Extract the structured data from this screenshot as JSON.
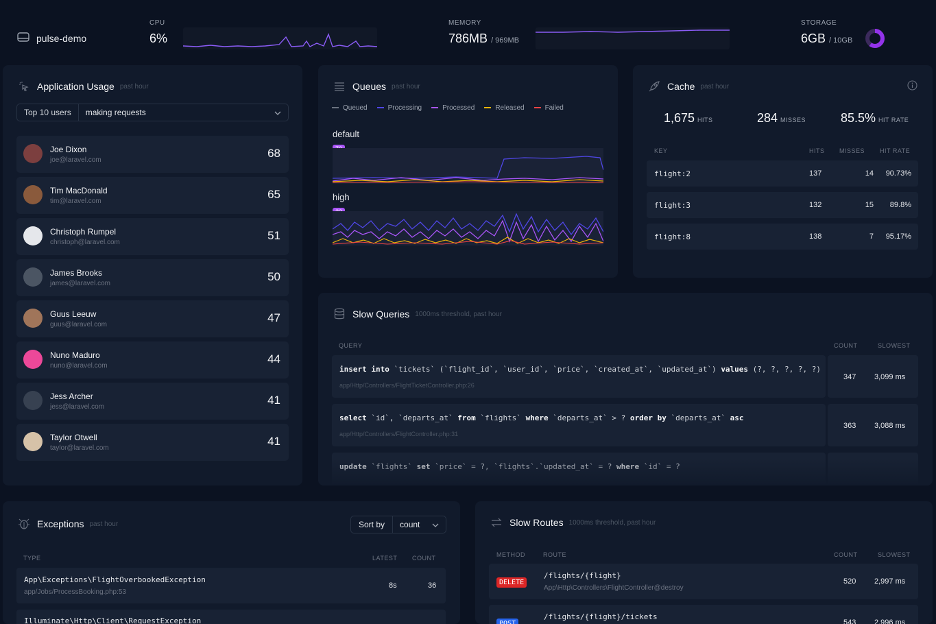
{
  "server": {
    "name": "pulse-demo"
  },
  "cpu": {
    "label": "CPU",
    "value": "6%"
  },
  "memory": {
    "label": "MEMORY",
    "value": "786MB",
    "total": "/ 969MB"
  },
  "storage": {
    "label": "STORAGE",
    "value": "6GB",
    "total": "/ 10GB",
    "used_fraction": 0.6
  },
  "app_usage": {
    "title": "Application Usage",
    "subtitle": "past hour",
    "filter_left": "Top 10 users",
    "filter_right": "making requests",
    "users": [
      {
        "name": "Joe Dixon",
        "email": "joe@laravel.com",
        "count": "68",
        "color": "#7c3f3f"
      },
      {
        "name": "Tim MacDonald",
        "email": "tim@laravel.com",
        "count": "65",
        "color": "#8a5a3c"
      },
      {
        "name": "Christoph Rumpel",
        "email": "christoph@laravel.com",
        "count": "51",
        "color": "#e5e7eb"
      },
      {
        "name": "James Brooks",
        "email": "james@laravel.com",
        "count": "50",
        "color": "#4b5563"
      },
      {
        "name": "Guus Leeuw",
        "email": "guus@laravel.com",
        "count": "47",
        "color": "#a0755a"
      },
      {
        "name": "Nuno Maduro",
        "email": "nuno@laravel.com",
        "count": "44",
        "color": "#ec4899"
      },
      {
        "name": "Jess Archer",
        "email": "jess@laravel.com",
        "count": "41",
        "color": "#374151"
      },
      {
        "name": "Taylor Otwell",
        "email": "taylor@laravel.com",
        "count": "41",
        "color": "#d6c2a8"
      }
    ]
  },
  "queues": {
    "title": "Queues",
    "subtitle": "past hour",
    "legend": [
      {
        "label": "Queued",
        "color": "#6b7280"
      },
      {
        "label": "Processing",
        "color": "#4f46e5"
      },
      {
        "label": "Processed",
        "color": "#a855f7"
      },
      {
        "label": "Released",
        "color": "#eab308"
      },
      {
        "label": "Failed",
        "color": "#ef4444"
      }
    ],
    "default": {
      "label": "default",
      "badge": "70"
    },
    "high": {
      "label": "high",
      "badge": "23"
    }
  },
  "cache": {
    "title": "Cache",
    "subtitle": "past hour",
    "hits": "1,675",
    "hits_label": "HITS",
    "misses": "284",
    "misses_label": "MISSES",
    "rate": "85.5%",
    "rate_label": "HIT RATE",
    "headers": {
      "key": "KEY",
      "hits": "HITS",
      "misses": "MISSES",
      "rate": "HIT RATE"
    },
    "rows": [
      {
        "key": "flight:2",
        "hits": "137",
        "misses": "14",
        "rate": "90.73%"
      },
      {
        "key": "flight:3",
        "hits": "132",
        "misses": "15",
        "rate": "89.8%"
      },
      {
        "key": "flight:8",
        "hits": "138",
        "misses": "7",
        "rate": "95.17%"
      }
    ]
  },
  "slow_queries": {
    "title": "Slow Queries",
    "subtitle": "1000ms threshold, past hour",
    "headers": {
      "query": "QUERY",
      "count": "COUNT",
      "slowest": "SLOWEST"
    },
    "rows": [
      {
        "path": "app/Http/Controllers/FlightTicketController.php:26",
        "count": "347",
        "slowest": "3,099 ms"
      },
      {
        "path": "app/Http/Controllers/FlightController.php:31",
        "count": "363",
        "slowest": "3,088 ms"
      }
    ],
    "q1": {
      "k1": "insert into",
      "t1": " `tickets` (`flight_id`, `user_id`, `price`, `created_at`, `updated_at`) ",
      "k2": "values",
      "t2": " (?, ?, ?, ?, ?)"
    },
    "q2": {
      "k1": "select",
      "t1": " `id`, `departs_at` ",
      "k2": "from",
      "t2": " `flights` ",
      "k3": "where",
      "t3": " `departs_at` > ? ",
      "k4": "order by",
      "t4": " `departs_at` ",
      "k5": "asc"
    },
    "q3": {
      "k1": "update",
      "t1": " `flights` ",
      "k2": "set",
      "t2": " `price` = ?, `flights`.`updated_at` = ? ",
      "k3": "where",
      "t3": " `id` = ?"
    }
  },
  "exceptions": {
    "title": "Exceptions",
    "subtitle": "past hour",
    "sort_label": "Sort by",
    "sort_value": "count",
    "headers": {
      "type": "TYPE",
      "latest": "LATEST",
      "count": "COUNT"
    },
    "rows": [
      {
        "type": "App\\Exceptions\\FlightOverbookedException",
        "path": "app/Jobs/ProcessBooking.php:53",
        "latest": "8s",
        "count": "36"
      },
      {
        "type": "Illuminate\\Http\\Client\\RequestException",
        "path": "",
        "latest": "",
        "count": ""
      }
    ]
  },
  "slow_routes": {
    "title": "Slow Routes",
    "subtitle": "1000ms threshold, past hour",
    "headers": {
      "method": "METHOD",
      "route": "ROUTE",
      "count": "COUNT",
      "slowest": "SLOWEST"
    },
    "rows": [
      {
        "method": "DELETE",
        "route": "/flights/{flight}",
        "action": "App\\Http\\Controllers\\FlightController@destroy",
        "count": "520",
        "slowest": "2,997 ms"
      },
      {
        "method": "POST",
        "route": "/flights/{flight}/tickets",
        "action": "",
        "count": "543",
        "slowest": "2,996 ms"
      }
    ]
  }
}
